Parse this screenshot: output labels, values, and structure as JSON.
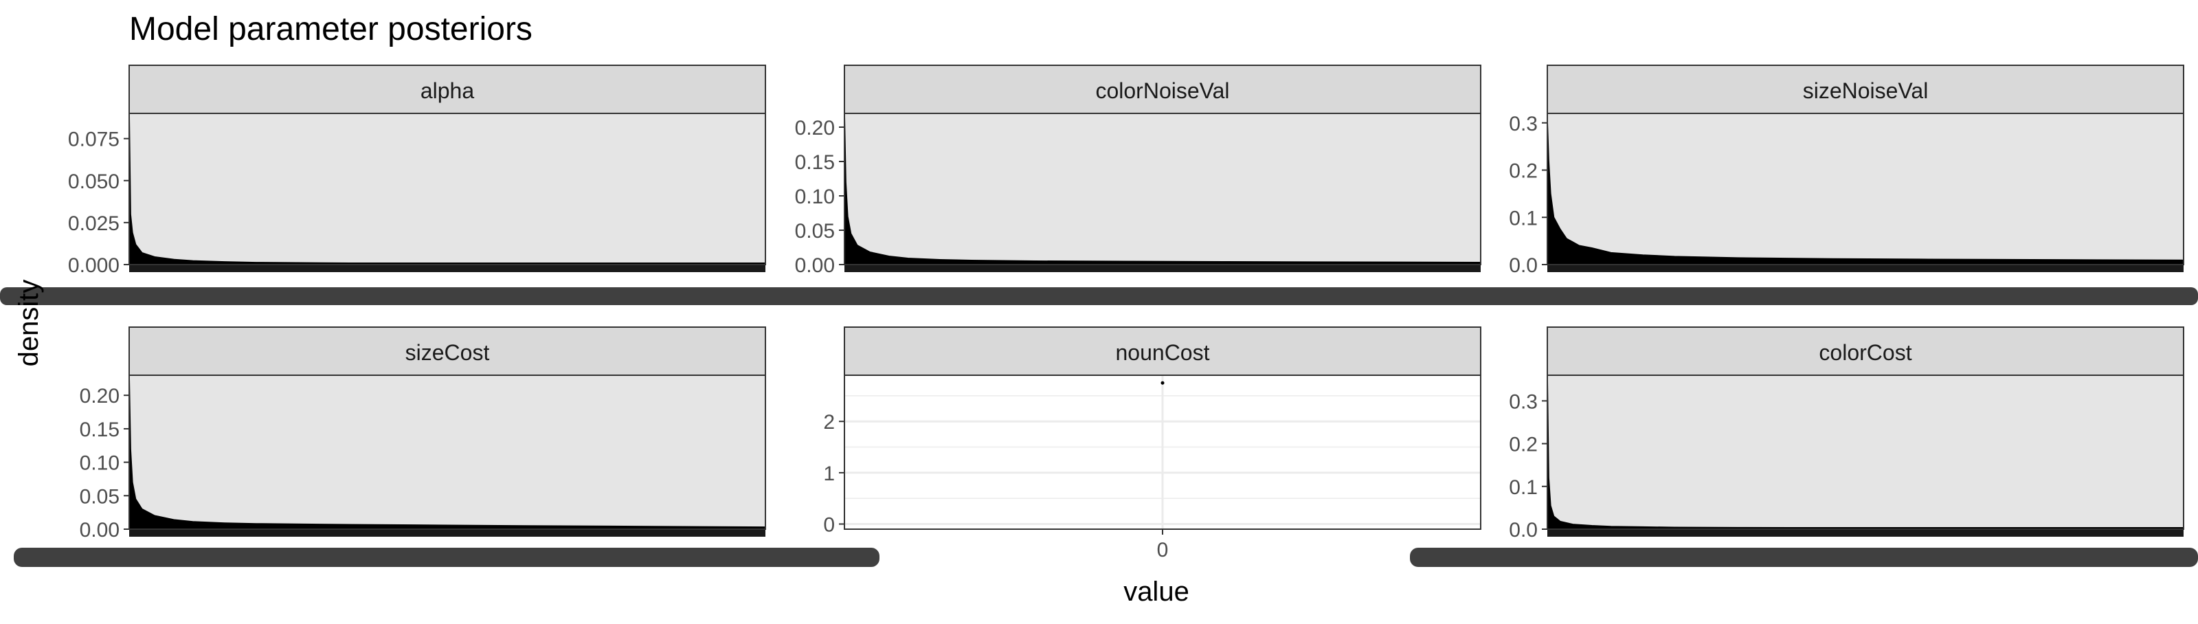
{
  "chart_data": {
    "type": "area",
    "title": "Model parameter posteriors",
    "xlabel": "value",
    "ylabel": "density",
    "facets": [
      {
        "strip": "alpha",
        "ylim": [
          0,
          0.09
        ],
        "yticks": [
          "0.000",
          "0.025",
          "0.050",
          "0.075"
        ],
        "ytick_values": [
          0,
          0.025,
          0.05,
          0.075
        ],
        "xlim": [
          0,
          1
        ],
        "series": [
          {
            "x": [
              0,
              0.002,
              0.005,
              0.01,
              0.02,
              0.04,
              0.07,
              0.1,
              0.15,
              0.2,
              0.3,
              0.45,
              0.6,
              0.8,
              1.0
            ],
            "values": [
              0.088,
              0.03,
              0.019,
              0.012,
              0.007,
              0.0045,
              0.003,
              0.0022,
              0.0016,
              0.0012,
              0.0009,
              0.0007,
              0.0005,
              0.0004,
              0.0003
            ]
          }
        ]
      },
      {
        "strip": "colorNoiseVal",
        "ylim": [
          0,
          0.22
        ],
        "yticks": [
          "0.00",
          "0.05",
          "0.10",
          "0.15",
          "0.20"
        ],
        "ytick_values": [
          0,
          0.05,
          0.1,
          0.15,
          0.2
        ],
        "xlim": [
          0,
          1
        ],
        "series": [
          {
            "x": [
              0,
              0.002,
              0.005,
              0.01,
              0.02,
              0.04,
              0.07,
              0.1,
              0.15,
              0.2,
              0.3,
              0.45,
              0.6,
              0.8,
              1.0
            ],
            "values": [
              0.215,
              0.12,
              0.07,
              0.045,
              0.028,
              0.018,
              0.012,
              0.009,
              0.007,
              0.006,
              0.005,
              0.0045,
              0.004,
              0.0035,
              0.003
            ]
          }
        ]
      },
      {
        "strip": "sizeNoiseVal",
        "ylim": [
          0,
          0.32
        ],
        "yticks": [
          "0.0",
          "0.1",
          "0.2",
          "0.3"
        ],
        "ytick_values": [
          0,
          0.1,
          0.2,
          0.3
        ],
        "xlim": [
          0,
          1
        ],
        "series": [
          {
            "x": [
              0,
              0.002,
              0.005,
              0.01,
              0.02,
              0.03,
              0.05,
              0.07,
              0.1,
              0.15,
              0.2,
              0.3,
              0.45,
              0.6,
              0.8,
              1.0
            ],
            "values": [
              0.3,
              0.22,
              0.15,
              0.1,
              0.075,
              0.055,
              0.04,
              0.035,
              0.025,
              0.02,
              0.017,
              0.014,
              0.012,
              0.011,
              0.01,
              0.009
            ]
          }
        ]
      },
      {
        "strip": "sizeCost",
        "ylim": [
          0,
          0.23
        ],
        "yticks": [
          "0.00",
          "0.05",
          "0.10",
          "0.15",
          "0.20"
        ],
        "ytick_values": [
          0,
          0.05,
          0.1,
          0.15,
          0.2
        ],
        "xlim": [
          0,
          1
        ],
        "series": [
          {
            "x": [
              0,
              0.002,
              0.005,
              0.01,
              0.02,
              0.04,
              0.07,
              0.1,
              0.15,
              0.2,
              0.3,
              0.45,
              0.6,
              0.8,
              1.0
            ],
            "values": [
              0.225,
              0.12,
              0.07,
              0.045,
              0.03,
              0.02,
              0.014,
              0.011,
              0.009,
              0.008,
              0.007,
              0.006,
              0.005,
              0.004,
              0.003
            ]
          }
        ]
      },
      {
        "strip": "nounCost",
        "ylim": [
          -0.1,
          2.9
        ],
        "yticks": [
          "0",
          "1",
          "2"
        ],
        "ytick_values": [
          0,
          1,
          2
        ],
        "xlim": [
          -1,
          1
        ],
        "xticks": [
          "0"
        ],
        "xtick_values": [
          0
        ],
        "series": [
          {
            "x": [
              0
            ],
            "values": [
              2.75
            ]
          }
        ]
      },
      {
        "strip": "colorCost",
        "ylim": [
          0,
          0.36
        ],
        "yticks": [
          "0.0",
          "0.1",
          "0.2",
          "0.3"
        ],
        "ytick_values": [
          0,
          0.1,
          0.2,
          0.3
        ],
        "xlim": [
          0,
          1
        ],
        "series": [
          {
            "x": [
              0,
              0.002,
              0.005,
              0.01,
              0.02,
              0.04,
              0.07,
              0.1,
              0.15,
              0.2,
              0.3,
              0.45,
              0.6,
              0.8,
              1.0
            ],
            "values": [
              0.345,
              0.12,
              0.055,
              0.03,
              0.018,
              0.011,
              0.008,
              0.006,
              0.005,
              0.004,
              0.0035,
              0.003,
              0.0025,
              0.002,
              0.0015
            ]
          }
        ]
      }
    ],
    "grid": true,
    "legend": "none"
  },
  "colors": {
    "panel_bg": "#e5e5e5",
    "nounCost_panel_bg": "#ffffff",
    "strip_bg": "#d9d9d9",
    "fill": "#000000",
    "grid": "#ebebeb",
    "axis_text": "#4d4d4d",
    "illegible_tick_labels": "#404040"
  }
}
